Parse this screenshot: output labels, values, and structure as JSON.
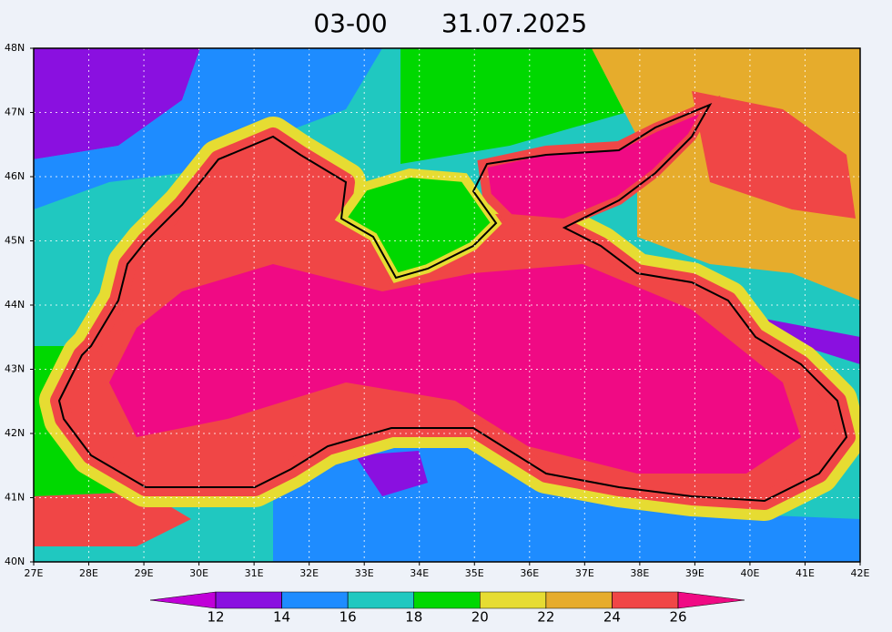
{
  "title": {
    "time": "03-00",
    "date": "31.07.2025"
  },
  "map": {
    "lon_range": [
      27,
      42
    ],
    "lat_range": [
      40,
      48
    ],
    "lon_ticks": [
      {
        "value": 27,
        "label": "27E"
      },
      {
        "value": 28,
        "label": "28E"
      },
      {
        "value": 29,
        "label": "29E"
      },
      {
        "value": 30,
        "label": "30E"
      },
      {
        "value": 31,
        "label": "31E"
      },
      {
        "value": 32,
        "label": "32E"
      },
      {
        "value": 33,
        "label": "33E"
      },
      {
        "value": 34,
        "label": "34E"
      },
      {
        "value": 35,
        "label": "35E"
      },
      {
        "value": 36,
        "label": "36E"
      },
      {
        "value": 37,
        "label": "37E"
      },
      {
        "value": 38,
        "label": "38E"
      },
      {
        "value": 39,
        "label": "39E"
      },
      {
        "value": 40,
        "label": "40E"
      },
      {
        "value": 41,
        "label": "41E"
      },
      {
        "value": 42,
        "label": "42E"
      }
    ],
    "lat_ticks": [
      {
        "value": 40,
        "label": "40N"
      },
      {
        "value": 41,
        "label": "41N"
      },
      {
        "value": 42,
        "label": "42N"
      },
      {
        "value": 43,
        "label": "43N"
      },
      {
        "value": 44,
        "label": "44N"
      },
      {
        "value": 45,
        "label": "45N"
      },
      {
        "value": 46,
        "label": "46N"
      },
      {
        "value": 47,
        "label": "47N"
      },
      {
        "value": 48,
        "label": "48N"
      }
    ],
    "grid": true
  },
  "colorbar": {
    "ticks": [
      12,
      14,
      16,
      18,
      20,
      22,
      24,
      26
    ],
    "colors": [
      "#c000d8",
      "#8a10e0",
      "#1e8cff",
      "#20c8c0",
      "#00d800",
      "#e6dc32",
      "#e6ac2c",
      "#f04646",
      "#f00a84"
    ]
  }
}
